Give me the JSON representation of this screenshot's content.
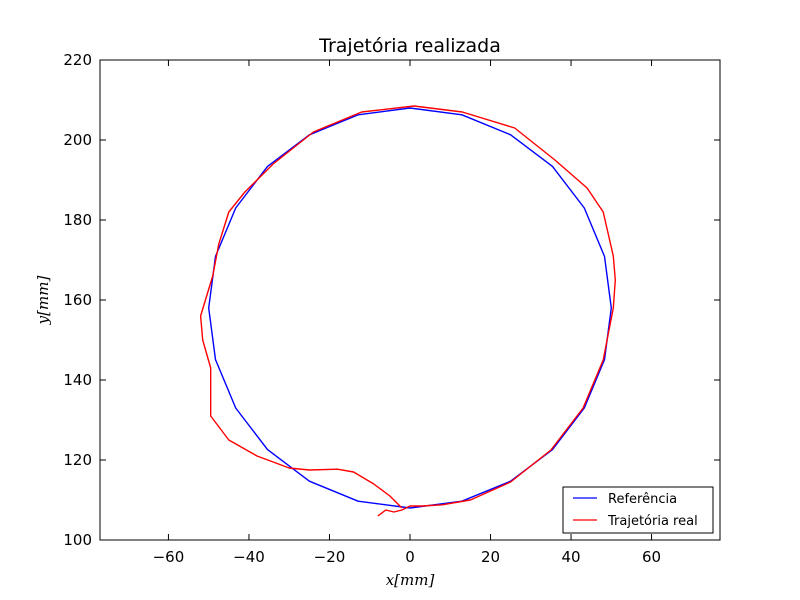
{
  "chart_data": {
    "type": "line",
    "title": "Trajetória realizada",
    "xlabel": "x[mm]",
    "ylabel": "y[mm]",
    "xlim": [
      -77,
      77
    ],
    "ylim": [
      100,
      220
    ],
    "xticks": [
      -60,
      -40,
      -20,
      0,
      20,
      40,
      60
    ],
    "yticks": [
      100,
      120,
      140,
      160,
      180,
      200,
      220
    ],
    "xtick_labels": [
      "−60",
      "−40",
      "−20",
      "0",
      "20",
      "40",
      "60"
    ],
    "ytick_labels": [
      "100",
      "120",
      "140",
      "160",
      "180",
      "200",
      "220"
    ],
    "grid": false,
    "legend_position": "bottom-right",
    "series": [
      {
        "name": "Referência",
        "color": "#0000ff",
        "x": [
          0,
          12.9,
          25.0,
          35.4,
          43.3,
          48.3,
          50.0,
          48.3,
          43.3,
          35.4,
          25.0,
          12.9,
          0,
          -12.9,
          -25.0,
          -35.4,
          -43.3,
          -48.3,
          -50.0,
          -48.3,
          -43.3,
          -35.4,
          -25.0,
          -12.9,
          0
        ],
        "y": [
          108,
          109.7,
          114.7,
          122.6,
          133.0,
          145.1,
          158,
          170.9,
          183.0,
          193.4,
          201.3,
          206.3,
          208,
          206.3,
          201.3,
          193.4,
          183.0,
          170.9,
          158,
          145.1,
          133.0,
          122.6,
          114.7,
          109.7,
          108
        ]
      },
      {
        "name": "Trajetória real",
        "color": "#ff0000",
        "x": [
          -8,
          -6,
          -4,
          -2,
          0,
          3,
          8,
          15,
          25,
          35,
          43,
          48,
          50.5,
          51,
          50.5,
          48,
          44,
          36,
          26,
          13,
          1,
          -12,
          -24,
          -34,
          -41,
          -45,
          -47.5,
          -49,
          -52,
          -51.5,
          -49.5,
          -49.5,
          -45,
          -38,
          -30,
          -25,
          -18,
          -14,
          -9,
          -5,
          -3,
          -2
        ],
        "y": [
          106,
          107.5,
          107,
          107.5,
          108.5,
          108.5,
          108.8,
          110,
          114.5,
          122.5,
          133,
          145,
          158,
          165,
          171,
          182,
          188,
          195,
          203,
          207,
          208.5,
          207,
          202,
          194,
          187,
          182,
          174,
          166,
          156,
          150,
          143,
          131,
          125,
          121,
          118,
          117.5,
          117.7,
          117,
          114,
          111,
          109,
          108
        ]
      }
    ]
  }
}
